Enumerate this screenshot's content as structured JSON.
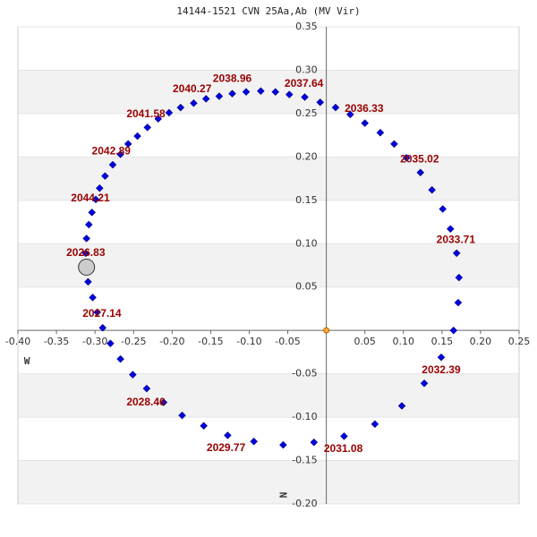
{
  "chart_data": {
    "type": "scatter",
    "title": "14144-1521 CVN  25Aa,Ab (MV Vir)",
    "x_label": "W",
    "y_label": "N",
    "xlim": [
      -0.4,
      0.25
    ],
    "ylim": [
      -0.2,
      0.35
    ],
    "xticks": [
      {
        "value": -0.4,
        "label": "-0.40"
      },
      -0.35,
      {
        "value": -0.3,
        "label": "-0.30"
      },
      -0.25,
      {
        "value": -0.2,
        "label": "-0.20"
      },
      -0.15,
      {
        "value": -0.1,
        "label": "-0.10"
      },
      -0.05,
      0.05,
      {
        "value": 0.1,
        "label": "0.10"
      },
      0.15,
      {
        "value": 0.2,
        "label": "0.20"
      },
      0.25
    ],
    "yticks": [
      {
        "value": -0.2,
        "label": "-0.20"
      },
      -0.15,
      {
        "value": -0.1,
        "label": "-0.10"
      },
      -0.05,
      0.05,
      {
        "value": 0.1,
        "label": "0.10"
      },
      0.15,
      {
        "value": 0.2,
        "label": "0.20"
      },
      0.25,
      {
        "value": 0.3,
        "label": "0.30"
      },
      0.35
    ],
    "grid": true,
    "series": [
      {
        "color": "#0000dd",
        "x": [
          0.012,
          0.031,
          0.05,
          0.07,
          0.088,
          0.104,
          0.122,
          0.137,
          0.151,
          0.161,
          0.169,
          0.172,
          0.171,
          0.165,
          0.149,
          0.127,
          0.098,
          0.063,
          0.023,
          -0.016,
          -0.056,
          -0.094,
          -0.128,
          -0.159,
          -0.187,
          -0.211,
          -0.233,
          -0.251,
          -0.267,
          -0.28,
          -0.29,
          -0.297,
          -0.303,
          -0.309,
          -0.312,
          -0.311,
          -0.308,
          -0.304,
          -0.299,
          -0.294,
          -0.287,
          -0.277,
          -0.267,
          -0.257,
          -0.245,
          -0.232,
          -0.218,
          -0.204,
          -0.189,
          -0.172,
          -0.156,
          -0.139,
          -0.122,
          -0.104,
          -0.085,
          -0.066,
          -0.048,
          -0.028,
          -0.008
        ],
        "values": [
          0.257,
          0.249,
          0.239,
          0.228,
          0.215,
          0.199,
          0.182,
          0.162,
          0.14,
          0.117,
          0.089,
          0.061,
          0.032,
          0.0,
          -0.031,
          -0.061,
          -0.087,
          -0.108,
          -0.122,
          -0.129,
          -0.132,
          -0.128,
          -0.121,
          -0.11,
          -0.098,
          -0.083,
          -0.067,
          -0.051,
          -0.033,
          -0.015,
          0.003,
          0.021,
          0.038,
          0.056,
          0.089,
          0.106,
          0.122,
          0.136,
          0.151,
          0.164,
          0.178,
          0.191,
          0.203,
          0.215,
          0.224,
          0.234,
          0.244,
          0.251,
          0.257,
          0.262,
          0.267,
          0.27,
          0.273,
          0.275,
          0.276,
          0.275,
          0.272,
          0.269,
          0.263
        ]
      },
      {
        "color": "#cccccc",
        "x": [
          -0.311
        ],
        "values": [
          0.073
        ]
      },
      {
        "color": "#ffaa33",
        "x": [
          0
        ],
        "values": [
          0
        ]
      }
    ],
    "annotations": [
      {
        "text": "2036.33",
        "x": 0.049,
        "y": 0.255
      },
      {
        "text": "2035.02",
        "x": 0.121,
        "y": 0.197
      },
      {
        "text": "2033.71",
        "x": 0.168,
        "y": 0.104
      },
      {
        "text": "2032.39",
        "x": 0.149,
        "y": -0.046
      },
      {
        "text": "2031.08",
        "x": 0.022,
        "y": -0.137
      },
      {
        "text": "2029.77",
        "x": -0.13,
        "y": -0.136
      },
      {
        "text": "2028.46",
        "x": -0.234,
        "y": -0.083
      },
      {
        "text": "2027.14",
        "x": -0.291,
        "y": 0.019
      },
      {
        "text": "2026.83",
        "x": -0.312,
        "y": 0.089
      },
      {
        "text": "2044.21",
        "x": -0.306,
        "y": 0.152
      },
      {
        "text": "2042.89",
        "x": -0.279,
        "y": 0.206
      },
      {
        "text": "2041.58",
        "x": -0.234,
        "y": 0.249
      },
      {
        "text": "2040.27",
        "x": -0.174,
        "y": 0.278
      },
      {
        "text": "2038.96",
        "x": -0.122,
        "y": 0.29
      },
      {
        "text": "2037.64",
        "x": -0.029,
        "y": 0.284
      }
    ]
  }
}
